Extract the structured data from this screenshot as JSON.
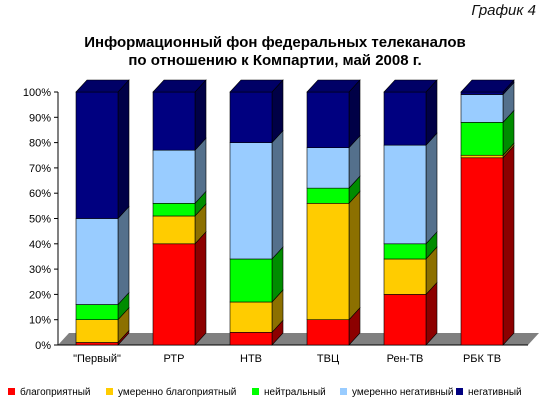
{
  "chart_data": {
    "type": "bar",
    "stacked": "percent",
    "three_d": true,
    "tag": "График 4",
    "title_lines": [
      "Информационный фон федеральных телеканалов",
      "по отношению к Компартии, май 2008 г."
    ],
    "categories": [
      "\"Первый\"",
      "РТР",
      "НТВ",
      "ТВЦ",
      "Рен-ТВ",
      "РБК ТВ"
    ],
    "series": [
      {
        "name": "благоприятный",
        "color": "#ff0000",
        "values": [
          1,
          40,
          5,
          10,
          20,
          74
        ]
      },
      {
        "name": "умеренно благоприятный",
        "color": "#ffcc00",
        "values": [
          9,
          11,
          12,
          46,
          14,
          1
        ]
      },
      {
        "name": "нейтральный",
        "color": "#00ff00",
        "values": [
          6,
          5,
          17,
          6,
          6,
          13
        ]
      },
      {
        "name": "умеренно негативный",
        "color": "#99ccff",
        "values": [
          34,
          21,
          46,
          16,
          39,
          11
        ]
      },
      {
        "name": "негативный",
        "color": "#000080",
        "values": [
          50,
          23,
          20,
          22,
          21,
          1
        ]
      }
    ],
    "y_ticks": [
      "0%",
      "10%",
      "20%",
      "30%",
      "40%",
      "50%",
      "60%",
      "70%",
      "80%",
      "90%",
      "100%"
    ],
    "ylim": [
      0,
      100
    ],
    "grid": false,
    "legend_position": "bottom"
  }
}
